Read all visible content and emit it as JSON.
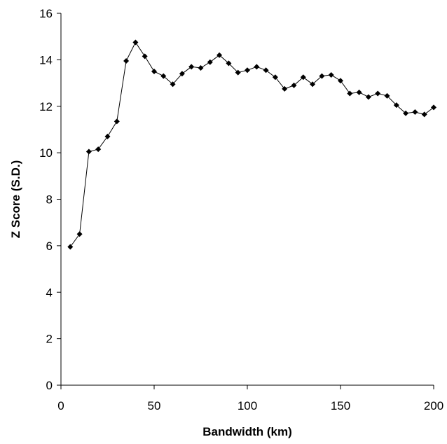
{
  "chart_data": {
    "type": "line",
    "title": "",
    "xlabel": "Bandwidth (km)",
    "ylabel": "Z Score (S.D.)",
    "xlim": [
      0,
      200
    ],
    "ylim": [
      0,
      16
    ],
    "xticks": [
      0,
      50,
      100,
      150,
      200
    ],
    "yticks": [
      0,
      2,
      4,
      6,
      8,
      10,
      12,
      14,
      16
    ],
    "grid": false,
    "legend": "none",
    "line_color": "#000000",
    "marker": "diamond",
    "series": [
      {
        "x": [
          5,
          10,
          15,
          20,
          25,
          30,
          35,
          40,
          45,
          50,
          55,
          60,
          65,
          70,
          75,
          80,
          85,
          90,
          95,
          100,
          105,
          110,
          115,
          120,
          125,
          130,
          135,
          140,
          145,
          150,
          155,
          160,
          165,
          170,
          175,
          180,
          185,
          190,
          195,
          200
        ],
        "y": [
          5.95,
          6.5,
          10.05,
          10.15,
          10.7,
          11.35,
          13.95,
          14.75,
          14.15,
          13.5,
          13.3,
          12.95,
          13.4,
          13.7,
          13.65,
          13.9,
          14.2,
          13.85,
          13.45,
          13.55,
          13.7,
          13.55,
          13.25,
          12.75,
          12.9,
          13.25,
          12.95,
          13.3,
          13.35,
          13.1,
          12.55,
          12.6,
          12.4,
          12.55,
          12.45,
          12.05,
          11.7,
          11.75,
          11.65,
          11.95
        ]
      }
    ]
  }
}
